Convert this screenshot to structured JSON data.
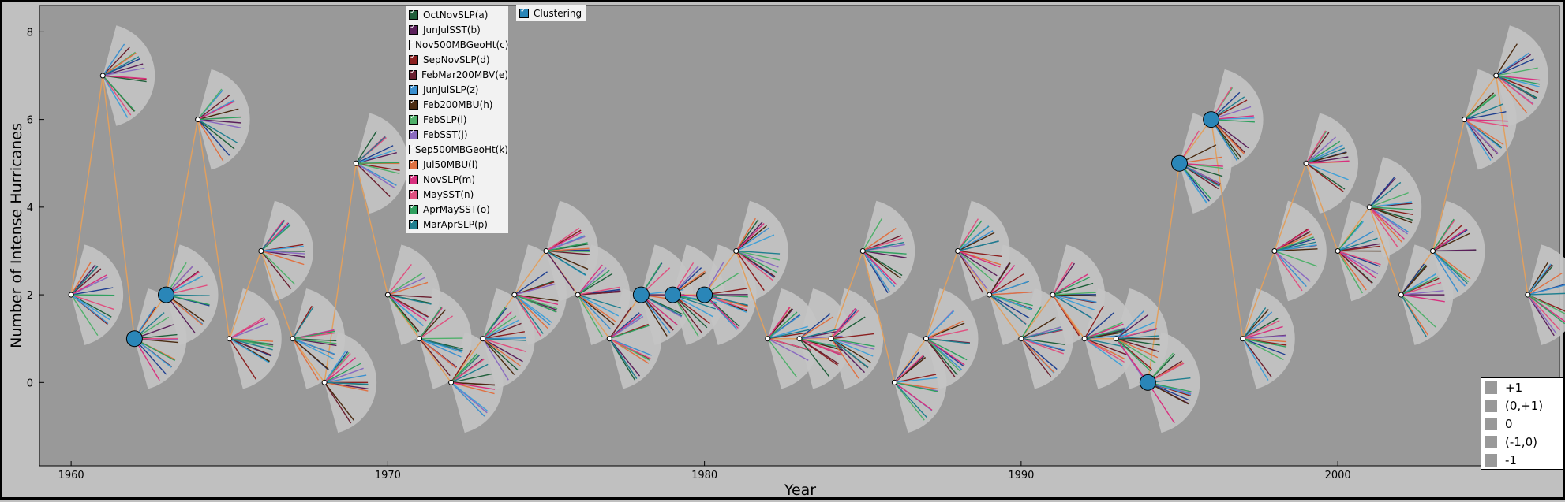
{
  "colors": {
    "fan": "#c4c4c4",
    "bg": "#999999",
    "line": "#e0a060",
    "node": "#2a86b8"
  },
  "chart_data": {
    "type": "line",
    "xlabel": "Year",
    "ylabel": "Number of Intense Hurricanes",
    "xlim": [
      1959,
      2007
    ],
    "ylim": [
      -1.9,
      8.6
    ],
    "xticks": [
      1960,
      1970,
      1980,
      1990,
      2000
    ],
    "yticks": [
      0,
      2,
      4,
      6,
      8
    ],
    "x": [
      1960,
      1961,
      1962,
      1963,
      1964,
      1965,
      1966,
      1967,
      1968,
      1969,
      1970,
      1971,
      1972,
      1973,
      1974,
      1975,
      1976,
      1977,
      1978,
      1979,
      1980,
      1981,
      1982,
      1983,
      1984,
      1985,
      1986,
      1987,
      1988,
      1989,
      1990,
      1991,
      1992,
      1993,
      1994,
      1995,
      1996,
      1997,
      1998,
      1999,
      2000,
      2001,
      2002,
      2003,
      2004,
      2005,
      2006
    ],
    "y": [
      2,
      7,
      1,
      2,
      6,
      1,
      3,
      1,
      0,
      5,
      2,
      1,
      0,
      1,
      2,
      3,
      2,
      1,
      2,
      2,
      2,
      3,
      1,
      1,
      1,
      3,
      0,
      1,
      3,
      2,
      1,
      2,
      1,
      1,
      0,
      5,
      6,
      1,
      3,
      5,
      3,
      4,
      2,
      3,
      6,
      7,
      2
    ],
    "clustered_years": [
      1962,
      1963,
      1978,
      1979,
      1980,
      1994,
      1995,
      1996
    ],
    "variables": [
      "OctNovSLP(a)",
      "JunJulSST(b)",
      "Nov500MBGeoHt(c)",
      "SepNovSLP(d)",
      "FebMar200MBV(e)",
      "JunJulSLP(z)",
      "Feb200MBU(h)",
      "FebSLP(i)",
      "FebSST(j)",
      "Sep500MBGeoHt(k)",
      "Jul50MBU(l)",
      "NovSLP(m)",
      "MaySST(n)",
      "AprMaySST(o)",
      "MarAprSLP(p)"
    ],
    "variable_colors": [
      "#1f5f3a",
      "#5a1f5a",
      "#1f3f8f",
      "#8b1f1f",
      "#6a1f2f",
      "#3a8fcf",
      "#4a2a10",
      "#4fb06a",
      "#8a6ac0",
      "#3fa0d8",
      "#e07040",
      "#d8307f",
      "#e04f7f",
      "#2fa05f",
      "#1f7f8f"
    ],
    "magnitude_legend": [
      "+1",
      "(0,+1)",
      "0",
      "(-1,0)",
      "-1"
    ]
  },
  "legend_toggle": {
    "label": "Clustering"
  }
}
